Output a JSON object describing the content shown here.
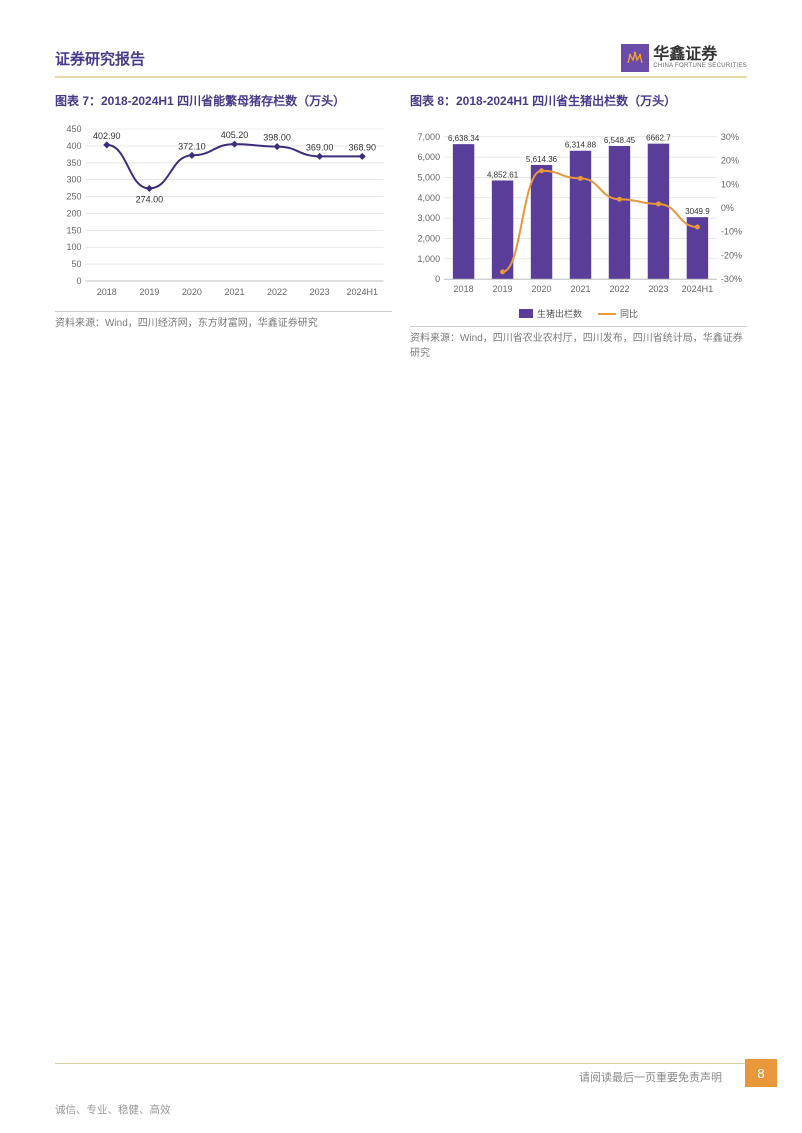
{
  "header": {
    "title": "证券研究报告",
    "logo_cn": "华鑫证券",
    "logo_en": "CHINA FORTUNE SECURITIES",
    "title_color": "#4a3a8a",
    "underline_color": "#e6d9a8",
    "logo_bg": "#6a4ba8",
    "logo_glyph_color": "#f0a030"
  },
  "chart7": {
    "type": "line",
    "title": "图表 7：2018-2024H1 四川省能繁母猪存栏数（万头）",
    "categories": [
      "2018",
      "2019",
      "2020",
      "2021",
      "2022",
      "2023",
      "2024H1"
    ],
    "values": [
      402.9,
      274.0,
      372.1,
      405.2,
      398.0,
      369.0,
      368.9
    ],
    "value_labels": [
      "402.90",
      "274.00",
      "372.10",
      "405.20",
      "398.00",
      "369.00",
      "368.90"
    ],
    "ylim": [
      0,
      450
    ],
    "ytick_step": 50,
    "line_color": "#3e2d7a",
    "marker_color": "#3e2d7a",
    "grid_color": "#d9d9d9",
    "axis_color": "#bfbfbf",
    "label_fontsize": 9,
    "tick_fontsize": 9,
    "background_color": "#ffffff",
    "source": "资料来源：Wind，四川经济网，东方财富网，华鑫证券研究"
  },
  "chart8": {
    "type": "bar+line",
    "title": "图表 8：2018-2024H1 四川省生猪出栏数（万头）",
    "categories": [
      "2018",
      "2019",
      "2020",
      "2021",
      "2022",
      "2023",
      "2024H1"
    ],
    "bar_values": [
      6638.34,
      4852.61,
      5614.36,
      6314.88,
      6548.45,
      6662.7,
      3049.9
    ],
    "bar_labels": [
      "6,638.34",
      "4,852.61",
      "5,614.36",
      "6,314.88",
      "6,548.45",
      "6662.7",
      "3049.9"
    ],
    "line_values_pct": [
      null,
      -26.9,
      15.7,
      12.5,
      3.7,
      1.7,
      -8.0
    ],
    "ylim_left": [
      0,
      7000
    ],
    "ytick_left_step": 1000,
    "ylim_right": [
      -30,
      30
    ],
    "ytick_right_step": 10,
    "bar_color": "#5a3d99",
    "line_color": "#e8983a",
    "grid_color": "#d9d9d9",
    "axis_color": "#bfbfbf",
    "label_fontsize": 8,
    "tick_fontsize": 9,
    "background_color": "#ffffff",
    "legend": {
      "bar_label": "生猪出栏数",
      "line_label": "同比"
    },
    "source": "资料来源：Wind，四川省农业农村厅，四川发布，四川省统计局，华鑫证券研究"
  },
  "footer": {
    "disclaimer": "请阅读最后一页重要免责声明",
    "page_number": "8",
    "motto": "诚信、专业、稳健、高效",
    "page_num_bg": "#e8983a",
    "line_color": "#d8cfa0"
  }
}
